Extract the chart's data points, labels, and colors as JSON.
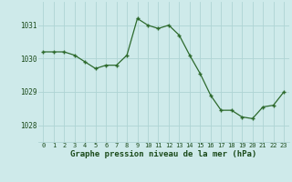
{
  "x": [
    0,
    1,
    2,
    3,
    4,
    5,
    6,
    7,
    8,
    9,
    10,
    11,
    12,
    13,
    14,
    15,
    16,
    17,
    18,
    19,
    20,
    21,
    22,
    23
  ],
  "y": [
    1030.2,
    1030.2,
    1030.2,
    1030.1,
    1029.9,
    1029.7,
    1029.8,
    1029.8,
    1030.1,
    1031.2,
    1031.0,
    1030.9,
    1031.0,
    1030.7,
    1030.1,
    1029.55,
    1028.9,
    1028.45,
    1028.45,
    1028.25,
    1028.2,
    1028.55,
    1028.6,
    1029.0
  ],
  "line_color": "#2d6a2d",
  "marker_color": "#2d6a2d",
  "bg_color": "#ceeaea",
  "grid_color": "#aed4d4",
  "xlabel": "Graphe pression niveau de la mer (hPa)",
  "xlabel_color": "#1a4a1a",
  "tick_color": "#1a4a1a",
  "ylim": [
    1027.5,
    1031.7
  ],
  "xlim": [
    -0.5,
    23.5
  ],
  "yticks": [
    1028,
    1029,
    1030,
    1031
  ],
  "xticks": [
    0,
    1,
    2,
    3,
    4,
    5,
    6,
    7,
    8,
    9,
    10,
    11,
    12,
    13,
    14,
    15,
    16,
    17,
    18,
    19,
    20,
    21,
    22,
    23
  ],
  "xtick_labels": [
    "0",
    "1",
    "2",
    "3",
    "4",
    "5",
    "6",
    "7",
    "8",
    "9",
    "10",
    "11",
    "12",
    "13",
    "14",
    "15",
    "16",
    "17",
    "18",
    "19",
    "20",
    "21",
    "22",
    "23"
  ]
}
